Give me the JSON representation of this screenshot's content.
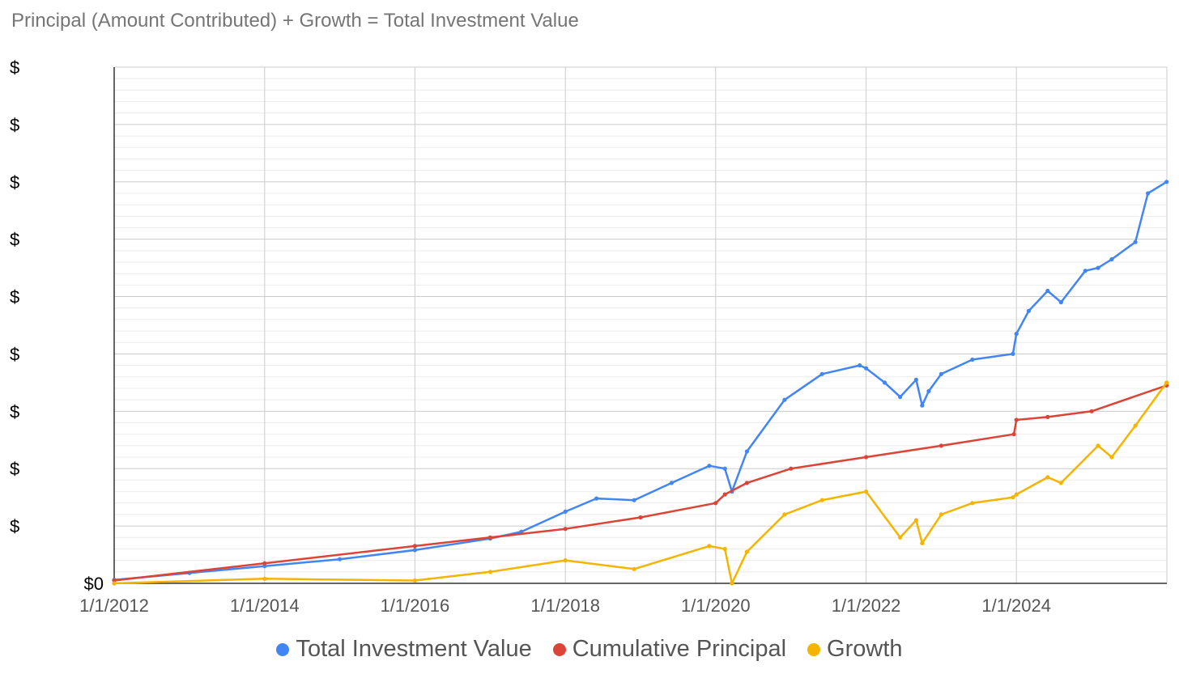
{
  "chart_data": {
    "type": "line",
    "title": "Principal (Amount Contributed) + Growth = Total Investment Value",
    "xlabel": "",
    "ylabel": "",
    "x_ticks": [
      "1/1/2012",
      "1/1/2014",
      "1/1/2016",
      "1/1/2018",
      "1/1/2020",
      "1/1/2022",
      "1/1/2024"
    ],
    "xlim": [
      "1/1/2012",
      "1/1/2026"
    ],
    "y_ticks": [
      "$0",
      "$",
      "$",
      "$",
      "$",
      "$",
      "$",
      "$",
      "$",
      "$"
    ],
    "ylim": [
      0,
      9
    ],
    "grid": true,
    "legend": "bottom",
    "series": [
      {
        "name": "Total Investment Value",
        "color": "#4285f4",
        "x": [
          "1/1/2012",
          "1/1/2013",
          "1/1/2014",
          "1/1/2015",
          "1/1/2016",
          "1/1/2017",
          "6/1/2017",
          "1/1/2018",
          "6/1/2018",
          "12/1/2018",
          "6/1/2019",
          "12/1/2019",
          "2/15/2020",
          "3/20/2020",
          "6/1/2020",
          "12/1/2020",
          "6/1/2021",
          "12/1/2021",
          "1/1/2022",
          "4/1/2022",
          "6/15/2022",
          "9/1/2022",
          "9/30/2022",
          "11/1/2022",
          "1/1/2023",
          "6/1/2023",
          "12/15/2023",
          "1/1/2024",
          "3/1/2024",
          "6/1/2024",
          "8/5/2024",
          "12/1/2024",
          "2/1/2025",
          "4/8/2025",
          "8/1/2025",
          "10/1/2025",
          "12/31/2025"
        ],
        "values": [
          0.06,
          0.18,
          0.3,
          0.42,
          0.58,
          0.78,
          0.9,
          1.25,
          1.48,
          1.45,
          1.75,
          2.05,
          2.0,
          1.6,
          2.3,
          3.2,
          3.65,
          3.8,
          3.75,
          3.5,
          3.25,
          3.55,
          3.1,
          3.35,
          3.65,
          3.9,
          4.0,
          4.35,
          4.75,
          5.1,
          4.9,
          5.45,
          5.5,
          5.65,
          5.95,
          6.8,
          7.0
        ]
      },
      {
        "name": "Cumulative Principal",
        "color": "#db4437",
        "x": [
          "1/1/2012",
          "1/1/2014",
          "1/1/2016",
          "1/1/2017",
          "1/1/2018",
          "1/1/2019",
          "1/1/2020",
          "2/15/2020",
          "6/1/2020",
          "1/1/2021",
          "1/1/2022",
          "1/1/2023",
          "12/20/2023",
          "1/1/2024",
          "6/1/2024",
          "1/1/2025",
          "12/31/2025"
        ],
        "values": [
          0.05,
          0.35,
          0.65,
          0.8,
          0.95,
          1.15,
          1.4,
          1.55,
          1.75,
          2.0,
          2.2,
          2.4,
          2.6,
          2.85,
          2.9,
          3.0,
          3.45
        ]
      },
      {
        "name": "Growth",
        "color": "#f4b400",
        "x": [
          "1/1/2012",
          "1/1/2014",
          "1/1/2016",
          "1/1/2017",
          "1/1/2018",
          "12/1/2018",
          "12/1/2019",
          "2/15/2020",
          "3/20/2020",
          "6/1/2020",
          "12/1/2020",
          "6/1/2021",
          "1/1/2022",
          "6/15/2022",
          "9/1/2022",
          "9/30/2022",
          "1/1/2023",
          "6/1/2023",
          "12/15/2023",
          "1/1/2024",
          "6/1/2024",
          "8/5/2024",
          "2/1/2025",
          "4/8/2025",
          "8/1/2025",
          "12/31/2025"
        ],
        "values": [
          0.0,
          0.08,
          0.05,
          0.2,
          0.4,
          0.25,
          0.65,
          0.6,
          0.0,
          0.55,
          1.2,
          1.45,
          1.6,
          0.8,
          1.1,
          0.7,
          1.2,
          1.4,
          1.5,
          1.55,
          1.85,
          1.75,
          2.4,
          2.2,
          2.75,
          3.5
        ]
      }
    ]
  }
}
